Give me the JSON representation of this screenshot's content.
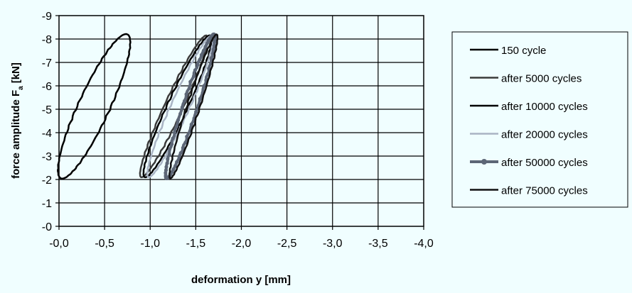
{
  "chart_data": {
    "type": "line",
    "title": "",
    "xlabel": "deformation y [mm]",
    "ylabel_main": "force amplitude F",
    "ylabel_sub": "a",
    "ylabel_unit": "[kN]",
    "x_reversed": true,
    "y_reversed": true,
    "xlim": [
      0,
      -4
    ],
    "ylim": [
      0,
      -9
    ],
    "x_ticks": [
      "-0,0",
      "-0,5",
      "-1,0",
      "-1,5",
      "-2,0",
      "-2,5",
      "-3,0",
      "-3,5",
      "-4,0"
    ],
    "y_ticks": [
      "-0",
      "-1",
      "-2",
      "-3",
      "-4",
      "-5",
      "-6",
      "-7",
      "-8",
      "-9"
    ],
    "grid": true,
    "legend_position": "right",
    "series": [
      {
        "name": "150 cycle",
        "color": "#000000",
        "marker": false,
        "loop": {
          "x_min": -0.02,
          "x_max": -0.75,
          "y_min": -2.05,
          "y_max": -8.2,
          "width": 0.34
        }
      },
      {
        "name": "after 5000 cycles",
        "color": "#3a3a3a",
        "marker": false,
        "loop": {
          "x_min": -0.9,
          "x_max": -1.62,
          "y_min": -2.1,
          "y_max": -8.15,
          "width": 0.2
        }
      },
      {
        "name": "after 10000 cycles",
        "color": "#000000",
        "marker": false,
        "loop": {
          "x_min": -0.94,
          "x_max": -1.66,
          "y_min": -2.1,
          "y_max": -8.15,
          "width": 0.22
        }
      },
      {
        "name": "after 20000 cycles",
        "color": "#a9b4c4",
        "marker": false,
        "loop": {
          "x_min": -0.98,
          "x_max": -1.68,
          "y_min": -2.1,
          "y_max": -8.15,
          "width": 0.2
        }
      },
      {
        "name": "after 50000 cycles",
        "color": "#5c6676",
        "marker": true,
        "loop": {
          "x_min": -1.18,
          "x_max": -1.7,
          "y_min": -2.05,
          "y_max": -8.2,
          "width": 0.16
        }
      },
      {
        "name": "after 75000 cycles",
        "color": "#111111",
        "marker": false,
        "loop": {
          "x_min": -1.22,
          "x_max": -1.73,
          "y_min": -2.05,
          "y_max": -8.2,
          "width": 0.14
        }
      }
    ]
  }
}
